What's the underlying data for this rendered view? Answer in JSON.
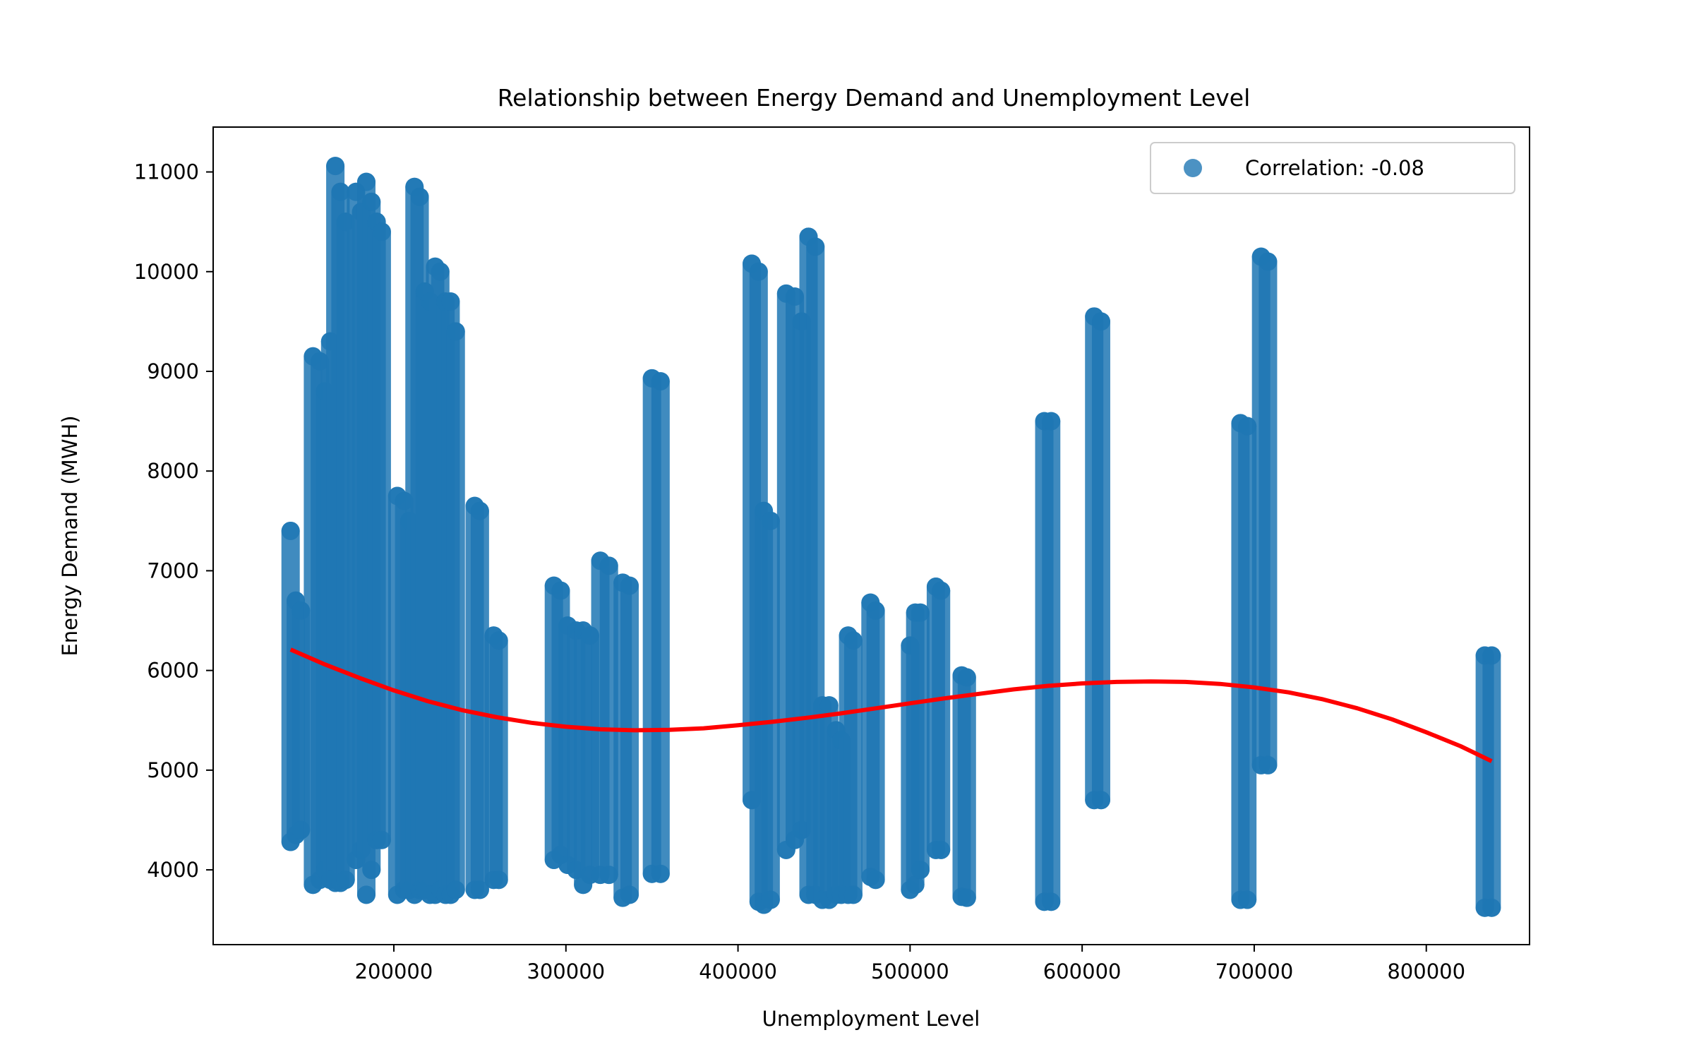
{
  "chart_data": {
    "type": "scatter",
    "title": "Relationship between Energy Demand and Unemployment Level",
    "xlabel": "Unemployment Level",
    "ylabel": "Energy Demand (MWH)",
    "xlim": [
      95000,
      860000
    ],
    "ylim": [
      3250,
      11450
    ],
    "xticks": [
      200000,
      300000,
      400000,
      500000,
      600000,
      700000,
      800000
    ],
    "yticks": [
      4000,
      5000,
      6000,
      7000,
      8000,
      9000,
      10000,
      11000
    ],
    "grid": false,
    "legend_position": "top-right",
    "legend": [
      "Correlation: -0.08"
    ],
    "colors": {
      "scatter": "#1f77b4",
      "trend": "#ff0000"
    },
    "series": [
      {
        "name": "Correlation: -0.08",
        "kind": "scatter",
        "columns": [
          [
            140000,
            4280,
            7400
          ],
          [
            143000,
            4350,
            6700
          ],
          [
            146000,
            4400,
            6600
          ],
          [
            153000,
            3850,
            9150
          ],
          [
            157000,
            3900,
            9100
          ],
          [
            160000,
            4000,
            8800
          ],
          [
            163000,
            3900,
            9300
          ],
          [
            166000,
            3870,
            11060
          ],
          [
            169000,
            3870,
            10800
          ],
          [
            172000,
            3900,
            10500
          ],
          [
            178000,
            4100,
            10800
          ],
          [
            181000,
            4200,
            10600
          ],
          [
            184000,
            3750,
            10900
          ],
          [
            187000,
            4000,
            10700
          ],
          [
            190000,
            4300,
            10500
          ],
          [
            193000,
            4300,
            10400
          ],
          [
            202000,
            3750,
            7750
          ],
          [
            206000,
            3800,
            7700
          ],
          [
            209000,
            3800,
            7500
          ],
          [
            212000,
            3750,
            10850
          ],
          [
            215000,
            3800,
            10750
          ],
          [
            218000,
            3800,
            9800
          ],
          [
            221000,
            3750,
            9700
          ],
          [
            224000,
            3750,
            10050
          ],
          [
            227000,
            3800,
            10000
          ],
          [
            230000,
            3750,
            9700
          ],
          [
            233000,
            3750,
            9700
          ],
          [
            236000,
            3800,
            9400
          ],
          [
            247000,
            3800,
            7650
          ],
          [
            250000,
            3800,
            7600
          ],
          [
            258000,
            3900,
            6350
          ],
          [
            261000,
            3900,
            6300
          ],
          [
            293000,
            4100,
            6850
          ],
          [
            297000,
            4150,
            6800
          ],
          [
            301000,
            4050,
            6450
          ],
          [
            306000,
            4000,
            6400
          ],
          [
            310000,
            3850,
            6400
          ],
          [
            314000,
            3950,
            6350
          ],
          [
            320000,
            3950,
            7100
          ],
          [
            325000,
            3950,
            7050
          ],
          [
            333000,
            3720,
            6880
          ],
          [
            337000,
            3750,
            6850
          ],
          [
            350000,
            3960,
            8930
          ],
          [
            355000,
            3960,
            8900
          ],
          [
            408000,
            4700,
            10080
          ],
          [
            412000,
            3680,
            10000
          ],
          [
            415000,
            3650,
            7600
          ],
          [
            419000,
            3700,
            7500
          ],
          [
            428000,
            4200,
            9780
          ],
          [
            433000,
            4300,
            9750
          ],
          [
            437000,
            4400,
            9500
          ],
          [
            441000,
            3750,
            10350
          ],
          [
            445000,
            3750,
            10250
          ],
          [
            449000,
            3700,
            5650
          ],
          [
            453000,
            3700,
            5650
          ],
          [
            457000,
            3750,
            5400
          ],
          [
            460000,
            3750,
            5300
          ],
          [
            464000,
            3750,
            6350
          ],
          [
            467000,
            3750,
            6300
          ],
          [
            477000,
            3930,
            6680
          ],
          [
            480000,
            3900,
            6600
          ],
          [
            500000,
            3800,
            6250
          ],
          [
            503000,
            3850,
            6580
          ],
          [
            506000,
            4000,
            6580
          ],
          [
            515000,
            4200,
            6840
          ],
          [
            518000,
            4200,
            6800
          ],
          [
            530000,
            3730,
            5950
          ],
          [
            533000,
            3720,
            5930
          ],
          [
            578000,
            3680,
            8500
          ],
          [
            582000,
            3680,
            8500
          ],
          [
            607000,
            4700,
            9550
          ],
          [
            611000,
            4700,
            9500
          ],
          [
            692000,
            3700,
            8480
          ],
          [
            696000,
            3700,
            8450
          ],
          [
            704000,
            5050,
            10150
          ],
          [
            708000,
            5050,
            10100
          ],
          [
            834000,
            3620,
            6150
          ],
          [
            838000,
            3620,
            6150
          ]
        ]
      },
      {
        "name": "",
        "kind": "line",
        "x": [
          140000,
          160000,
          180000,
          200000,
          220000,
          240000,
          260000,
          280000,
          300000,
          320000,
          340000,
          360000,
          380000,
          400000,
          420000,
          440000,
          460000,
          480000,
          500000,
          520000,
          540000,
          560000,
          580000,
          600000,
          620000,
          640000,
          660000,
          680000,
          700000,
          720000,
          740000,
          760000,
          780000,
          800000,
          820000,
          838000
        ],
        "y": [
          6210,
          6060,
          5925,
          5800,
          5690,
          5600,
          5530,
          5475,
          5435,
          5410,
          5400,
          5405,
          5420,
          5450,
          5485,
          5525,
          5570,
          5620,
          5670,
          5720,
          5765,
          5810,
          5845,
          5870,
          5885,
          5890,
          5885,
          5865,
          5830,
          5780,
          5710,
          5620,
          5510,
          5380,
          5240,
          5090
        ]
      }
    ]
  }
}
